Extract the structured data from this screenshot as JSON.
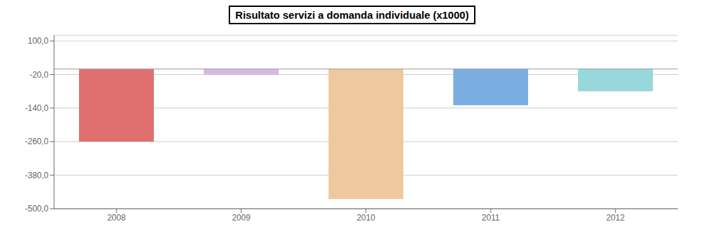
{
  "chart_data": {
    "type": "bar",
    "title": "Risultato servizi a domanda individuale (x1000)",
    "categories": [
      "2008",
      "2009",
      "2010",
      "2011",
      "2012"
    ],
    "values": [
      -260.0,
      -20.0,
      -465.0,
      -130.0,
      -80.0
    ],
    "colors": [
      "#e07070",
      "#d4b8e8",
      "#f0c8a0",
      "#7aaee0",
      "#98d8dc"
    ],
    "ylim": [
      -500,
      120
    ],
    "yticks": [
      {
        "value": 100,
        "label": "100,0"
      },
      {
        "value": -20,
        "label": "-20,0"
      },
      {
        "value": -140,
        "label": "-140,0"
      },
      {
        "value": -260,
        "label": "-260,0"
      },
      {
        "value": -380,
        "label": "-380,0"
      },
      {
        "value": -500,
        "label": "-500,0"
      }
    ],
    "grid": true
  }
}
